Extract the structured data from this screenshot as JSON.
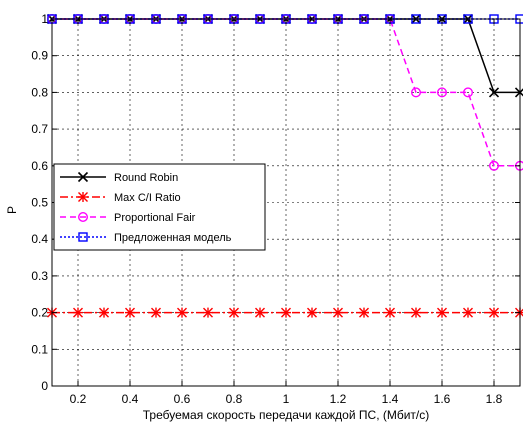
{
  "chart_data": {
    "type": "line",
    "title": "",
    "xlabel": "Требуемая скорость передачи каждой ПС, (Мбит/с)",
    "ylabel": "P",
    "xlim": [
      0.1,
      1.9
    ],
    "ylim": [
      0,
      1
    ],
    "grid": true,
    "legend_position": "middle-left",
    "x": [
      0.1,
      0.2,
      0.3,
      0.4,
      0.5,
      0.6,
      0.7,
      0.8,
      0.9,
      1.0,
      1.1,
      1.2,
      1.3,
      1.4,
      1.5,
      1.6,
      1.7,
      1.8,
      1.9
    ],
    "x_ticks": [
      0.2,
      0.4,
      0.6,
      0.8,
      1.0,
      1.2,
      1.4,
      1.6,
      1.8
    ],
    "x_tick_labels": [
      "0.2",
      "0.4",
      "0.6",
      "0.8",
      "1",
      "1.2",
      "1.4",
      "1.6",
      "1.8"
    ],
    "y_ticks": [
      0,
      0.1,
      0.2,
      0.3,
      0.4,
      0.5,
      0.6,
      0.7,
      0.8,
      0.9,
      1.0
    ],
    "y_tick_labels": [
      "0",
      "0.1",
      "0.2",
      "0.3",
      "0.4",
      "0.5",
      "0.6",
      "0.7",
      "0.8",
      "0.9",
      "1"
    ],
    "series": [
      {
        "name": "Round Robin",
        "color": "#000000",
        "dash": "solid",
        "marker": "x",
        "values": [
          1,
          1,
          1,
          1,
          1,
          1,
          1,
          1,
          1,
          1,
          1,
          1,
          1,
          1,
          1,
          1,
          1,
          0.8,
          0.8
        ]
      },
      {
        "name": "Max C/I Ratio",
        "color": "#ff0000",
        "dash": "dashdot",
        "marker": "asterisk",
        "values": [
          0.2,
          0.2,
          0.2,
          0.2,
          0.2,
          0.2,
          0.2,
          0.2,
          0.2,
          0.2,
          0.2,
          0.2,
          0.2,
          0.2,
          0.2,
          0.2,
          0.2,
          0.2,
          0.2
        ]
      },
      {
        "name": "Proportional Fair",
        "color": "#ff00ff",
        "dash": "dashed",
        "marker": "circle",
        "values": [
          1,
          1,
          1,
          1,
          1,
          1,
          1,
          1,
          1,
          1,
          1,
          1,
          1,
          1,
          0.8,
          0.8,
          0.8,
          0.6,
          0.6
        ]
      },
      {
        "name": "Предложенная модель",
        "color": "#0000ff",
        "dash": "dotted",
        "marker": "square",
        "values": [
          1,
          1,
          1,
          1,
          1,
          1,
          1,
          1,
          1,
          1,
          1,
          1,
          1,
          1,
          1,
          1,
          1,
          1,
          1
        ]
      }
    ]
  }
}
